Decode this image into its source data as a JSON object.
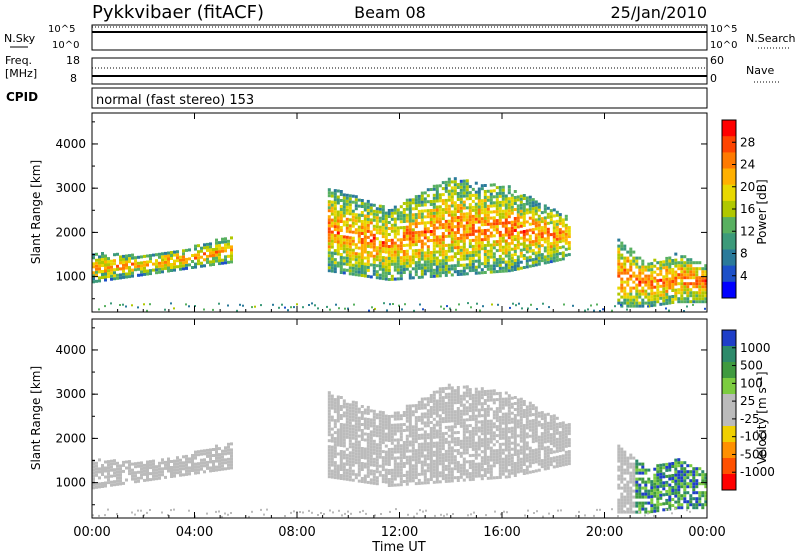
{
  "header": {
    "station": "Pykkvibaer (fitACF)",
    "beam": "Beam 08",
    "date": "25/Jan/2010"
  },
  "noise_panel": {
    "left_label": "N.Sky",
    "right_label": "N.Search",
    "left_ticks": [
      "10^5",
      "10^0"
    ],
    "right_ticks": [
      "10^5",
      "10^0"
    ]
  },
  "freq_panel": {
    "left_label_1": "Freq.",
    "left_label_2": "[MHz]",
    "right_label": "Nave",
    "left_ticks": [
      "18",
      "8"
    ],
    "right_ticks": [
      "60",
      "0"
    ]
  },
  "cpid_panel": {
    "label": "CPID",
    "text": "normal (fast stereo) 153"
  },
  "power_colorbar": {
    "label": "Power [dB]",
    "ticks": [
      "28",
      "24",
      "20",
      "16",
      "12",
      "8",
      "4"
    ],
    "colors": [
      "#ff0000",
      "#ff4400",
      "#ff7a00",
      "#ffb000",
      "#e8d800",
      "#b0c800",
      "#58b060",
      "#3c9a7a",
      "#2a7a9a",
      "#1c50c8",
      "#0000ff"
    ]
  },
  "velocity_colorbar": {
    "label": "Velocity [m s⁻¹]",
    "ticks": [
      "1000",
      "500",
      "100",
      "25",
      "-25",
      "-100",
      "-500",
      "-1000"
    ],
    "colors": [
      "#1f3fc8",
      "#2d8a6a",
      "#3f9a3f",
      "#7ccc40",
      "#bbbbbb",
      "#bbbbbb",
      "#f0d000",
      "#ff9000",
      "#ff5000",
      "#ff0000"
    ]
  },
  "chart_data": [
    {
      "type": "heatmap",
      "panel": "power",
      "xlabel": "",
      "ylabel": "Slant Range [km]",
      "x_ticks": [
        "00:00",
        "04:00",
        "08:00",
        "12:00",
        "16:00",
        "20:00",
        "00:00"
      ],
      "y_ticks": [
        "1000",
        "2000",
        "3000",
        "4000"
      ],
      "ylim": [
        200,
        4700
      ],
      "zlim_db": [
        0,
        30
      ],
      "regions": [
        {
          "name": "early",
          "t": [
            0.0,
            5.4
          ],
          "r_lo": [
            850,
            1000,
            1150,
            1300
          ],
          "r_hi": [
            1500,
            1450,
            1600,
            1900
          ],
          "val": 17
        },
        {
          "name": "main",
          "t": [
            9.2,
            18.6
          ],
          "r_lo": [
            1100,
            900,
            1000,
            1100,
            1400
          ],
          "r_hi": [
            3000,
            2500,
            3200,
            3000,
            2300
          ],
          "val": 19
        },
        {
          "name": "late",
          "t": [
            20.5,
            24.0
          ],
          "r_lo": [
            300,
            300,
            400,
            400
          ],
          "r_hi": [
            1800,
            1300,
            1500,
            1200
          ],
          "val": 21
        }
      ]
    },
    {
      "type": "heatmap",
      "panel": "velocity",
      "xlabel": "Time UT",
      "ylabel": "Slant Range [km]",
      "x_ticks": [
        "00:00",
        "04:00",
        "08:00",
        "12:00",
        "16:00",
        "20:00",
        "00:00"
      ],
      "y_ticks": [
        "1000",
        "2000",
        "3000",
        "4000"
      ],
      "ylim": [
        200,
        4700
      ],
      "zlim_ms": [
        -1000,
        1000
      ],
      "regions": [
        {
          "name": "early",
          "t": [
            0.0,
            5.4
          ],
          "r_lo": [
            850,
            1000,
            1150,
            1300
          ],
          "r_hi": [
            1500,
            1450,
            1600,
            1900
          ],
          "val": 0
        },
        {
          "name": "main",
          "t": [
            9.2,
            18.6
          ],
          "r_lo": [
            1100,
            900,
            1000,
            1100,
            1400
          ],
          "r_hi": [
            3000,
            2500,
            3200,
            3000,
            2300
          ],
          "val": 0
        },
        {
          "name": "late",
          "t": [
            20.5,
            24.0
          ],
          "r_lo": [
            300,
            300,
            400,
            400
          ],
          "r_hi": [
            1800,
            1300,
            1500,
            1200
          ],
          "val": 600
        }
      ]
    }
  ]
}
